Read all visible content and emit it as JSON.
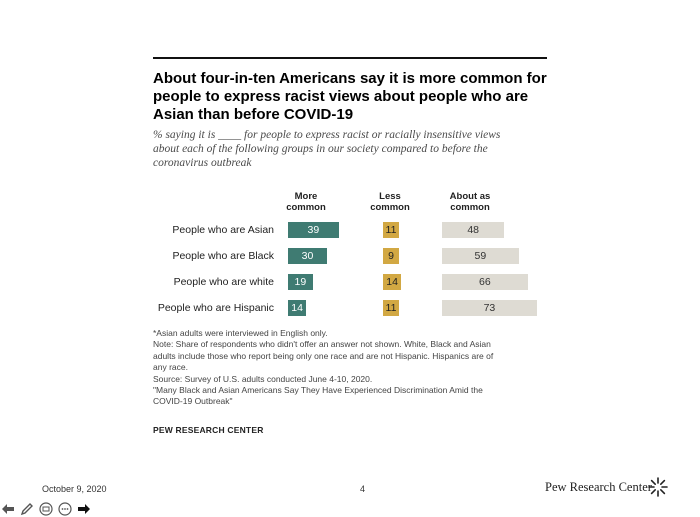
{
  "title_lines": [
    "About four-in-ten Americans say it is more common for",
    "people to express racist views about people who are",
    "Asian than before COVID-19"
  ],
  "subtitle_lines": [
    "% saying it is ____ for people to express racist or racially insensitive views",
    "about each of the following groups in our society compared to before the",
    "coronavirus outbreak"
  ],
  "columns": [
    {
      "lines": [
        "More",
        "common"
      ]
    },
    {
      "lines": [
        "Less",
        "common"
      ]
    },
    {
      "lines": [
        "About as",
        "common"
      ]
    }
  ],
  "colors": {
    "more": "#3f7b72",
    "less": "#d2a843",
    "same": "#dedbd3"
  },
  "chart_data": {
    "type": "bar",
    "categories": [
      "People who are Asian",
      "People who are Black",
      "People who are white",
      "People who are Hispanic"
    ],
    "series": [
      {
        "name": "More common",
        "values": [
          39,
          30,
          19,
          14
        ]
      },
      {
        "name": "Less common",
        "values": [
          11,
          9,
          14,
          11
        ]
      },
      {
        "name": "About as common",
        "values": [
          48,
          59,
          66,
          73
        ]
      }
    ]
  },
  "notes": [
    "*Asian adults were interviewed in English only.",
    "Note: Share of respondents who didn't offer an answer not shown. White, Black and Asian",
    "adults include those who report being only one race and are not Hispanic. Hispanics are of",
    "any race.",
    "Source: Survey of U.S. adults conducted June 4-10, 2020.",
    "\"Many Black and Asian Americans Say They Have Experienced Discrimination Amid the",
    "COVID-19 Outbreak\""
  ],
  "brand": "PEW RESEARCH CENTER",
  "footer": {
    "date": "October 9, 2020",
    "page": "4",
    "logo": "Pew Research Center"
  },
  "toolbar": [
    "back-arrow-icon",
    "pen-icon",
    "slides-icon",
    "more-icon",
    "forward-arrow-icon"
  ]
}
